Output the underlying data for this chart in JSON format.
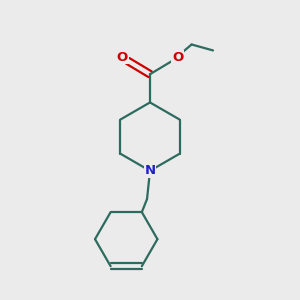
{
  "bg_color": "#ebebeb",
  "bond_color": "#2d6b5e",
  "N_color": "#2020cc",
  "O_color": "#cc0000",
  "line_width": 1.6,
  "fig_size": [
    3.0,
    3.0
  ],
  "dpi": 100,
  "xlim": [
    0,
    1
  ],
  "ylim": [
    0,
    1
  ]
}
